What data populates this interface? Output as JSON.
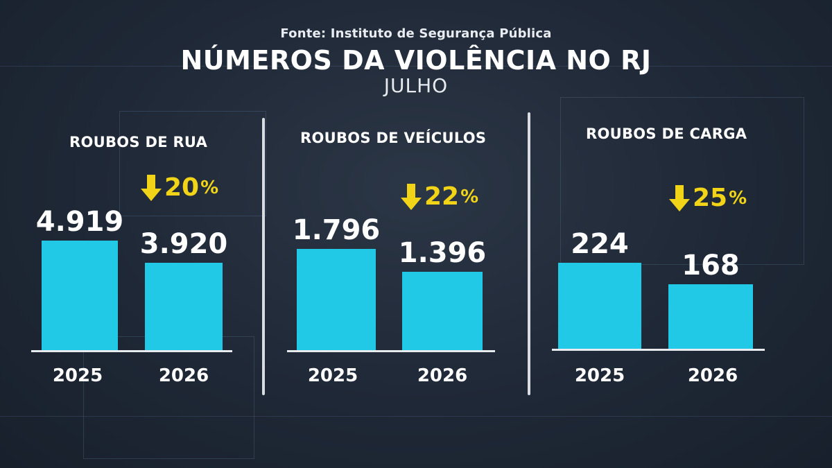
{
  "header": {
    "source": "Fonte: Instituto de Segurança Pública",
    "title": "NÚMEROS DA VIOLÊNCIA NO RJ",
    "subtitle": "JULHO"
  },
  "colors": {
    "background": "#1f2836",
    "bar": "#21c9e6",
    "change": "#f1d417",
    "text": "#ffffff"
  },
  "chart_data": [
    {
      "type": "bar",
      "title": "ROUBOS DE RUA",
      "categories": [
        "2025",
        "2026"
      ],
      "values": [
        4919,
        3920
      ],
      "value_labels": [
        "4.919",
        "3.920"
      ],
      "change": {
        "direction": "down",
        "value": "20",
        "unit": "%",
        "icon": "arrow-down-icon"
      },
      "ylim": [
        0,
        4919
      ]
    },
    {
      "type": "bar",
      "title": "ROUBOS DE VEÍCULOS",
      "categories": [
        "2025",
        "2026"
      ],
      "values": [
        1796,
        1396
      ],
      "value_labels": [
        "1.796",
        "1.396"
      ],
      "change": {
        "direction": "down",
        "value": "22",
        "unit": "%",
        "icon": "arrow-down-icon"
      },
      "ylim": [
        0,
        1796
      ]
    },
    {
      "type": "bar",
      "title": "ROUBOS DE CARGA",
      "categories": [
        "2025",
        "2026"
      ],
      "values": [
        224,
        168
      ],
      "value_labels": [
        "224",
        "168"
      ],
      "change": {
        "direction": "down",
        "value": "25",
        "unit": "%",
        "icon": "arrow-down-icon"
      },
      "ylim": [
        0,
        224
      ]
    }
  ]
}
